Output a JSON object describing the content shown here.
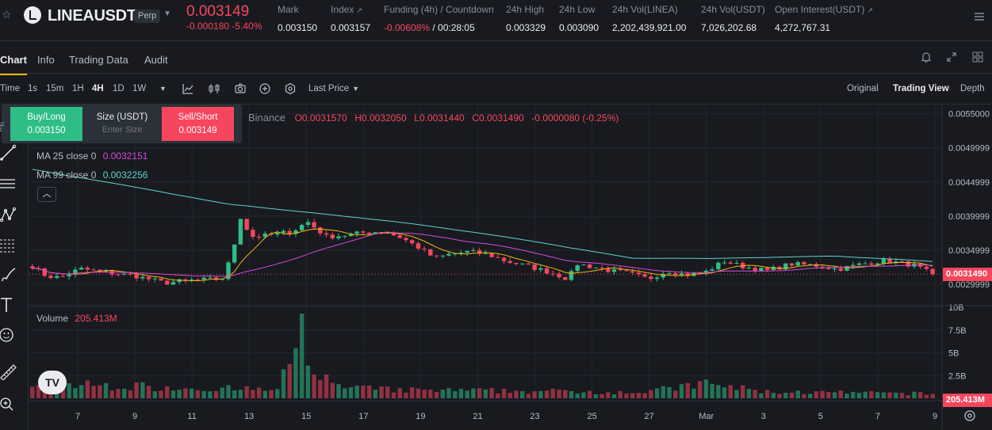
{
  "header": {
    "symbol": "LINEAUSDT",
    "badge": "Perp",
    "last_price": "0.003149",
    "change": "-0.000180 -5.40%",
    "stats": [
      {
        "label": "Mark",
        "value": "0.003150"
      },
      {
        "label": "Index",
        "value": "0.003157"
      },
      {
        "label": "Funding (4h) / Countdown",
        "value_neg": "-0.00608%",
        "value_rest": " / 00:28:05"
      },
      {
        "label": "24h High",
        "value": "0.003329"
      },
      {
        "label": "24h Low",
        "value": "0.003090"
      },
      {
        "label": "24h Vol(LINEA)",
        "value": "2,202,439,921.00"
      },
      {
        "label": "24h Vol(USDT)",
        "value": "7,026,202.68"
      },
      {
        "label": "Open Interest(USDT)",
        "value": "4,272,767.31"
      }
    ]
  },
  "tabs": [
    "Chart",
    "Info",
    "Trading Data",
    "Audit"
  ],
  "chart_toolbar": {
    "intervals": [
      "Time",
      "1s",
      "15m",
      "1H",
      "4H",
      "1D",
      "1W"
    ],
    "active_interval": "4H",
    "price_type": "Last Price",
    "views": [
      "Original",
      "Trading View",
      "Depth"
    ],
    "active_view": "Trading View"
  },
  "order_widget": {
    "buy_label": "Buy/Long",
    "buy_price": "0.003150",
    "size_label": "Size (USDT)",
    "size_placeholder": "Enter Size",
    "sell_label": "Sell/Short",
    "sell_price": "0.003149"
  },
  "legend": {
    "ohlc_source": "Binance",
    "o": "O0.0031570",
    "h": "H0.0032050",
    "l": "L0.0031440",
    "c": "C0.0031490",
    "chg": "-0.0000080 (-0.25%)",
    "ma25_label": "MA 25 close 0",
    "ma25_value": "0.0032151",
    "ma99_label": "MA 99 close 0",
    "ma99_value": "0.0032256",
    "volume_label": "Volume",
    "volume_value": "205.413M",
    "tv_logo": "TV"
  },
  "colors": {
    "up": "#2ebd85",
    "down": "#f6465d",
    "ma7": "#f0b90b",
    "ma25": "#d64bd8",
    "ma99": "#5ed3c7",
    "accent": "#f0b90b"
  },
  "chart_data": {
    "type": "candlestick",
    "interval": "4H",
    "price_axis_ticks": [
      "0.0055000",
      "0.0049999",
      "0.0044999",
      "0.0039999",
      "0.0034999",
      "0.0029999"
    ],
    "price_ylim": [
      0.0027,
      0.0056
    ],
    "volume_axis_ticks": [
      "10B",
      "7.5B",
      "5B",
      "2.5B"
    ],
    "volume_ylim": [
      0,
      10
    ],
    "last_price_tag": "0.0031490",
    "last_price_value": 0.003149,
    "last_volume_tag": "205.413M",
    "x_labels": [
      "7",
      "9",
      "11",
      "13",
      "15",
      "17",
      "19",
      "21",
      "23",
      "25",
      "27",
      "Mar",
      "3",
      "5",
      "7",
      "9"
    ],
    "candle_count": 148,
    "anchors": [
      [
        0,
        0.00327
      ],
      [
        3,
        0.00312
      ],
      [
        6,
        0.0031
      ],
      [
        10,
        0.00323
      ],
      [
        15,
        0.00318
      ],
      [
        22,
        0.00312
      ],
      [
        28,
        0.00302
      ],
      [
        33,
        0.00306
      ],
      [
        40,
        0.00308
      ],
      [
        42,
        0.0034
      ],
      [
        44,
        0.004
      ],
      [
        46,
        0.0037
      ],
      [
        50,
        0.00372
      ],
      [
        55,
        0.00378
      ],
      [
        58,
        0.00392
      ],
      [
        62,
        0.0037
      ],
      [
        66,
        0.00372
      ],
      [
        70,
        0.00376
      ],
      [
        74,
        0.00378
      ],
      [
        78,
        0.00368
      ],
      [
        82,
        0.00352
      ],
      [
        85,
        0.00338
      ],
      [
        88,
        0.00344
      ],
      [
        92,
        0.00348
      ],
      [
        96,
        0.00344
      ],
      [
        100,
        0.00334
      ],
      [
        105,
        0.00326
      ],
      [
        110,
        0.00316
      ],
      [
        113,
        0.00308
      ],
      [
        115,
        0.0033
      ],
      [
        118,
        0.00326
      ],
      [
        122,
        0.0032
      ],
      [
        126,
        0.00316
      ],
      [
        130,
        0.00308
      ],
      [
        134,
        0.0032
      ],
      [
        138,
        0.00314
      ],
      [
        142,
        0.00318
      ],
      [
        146,
        0.00334
      ],
      [
        150,
        0.00326
      ],
      [
        155,
        0.0032
      ],
      [
        160,
        0.0033
      ],
      [
        165,
        0.00328
      ],
      [
        170,
        0.00322
      ],
      [
        175,
        0.0033
      ],
      [
        180,
        0.00335
      ],
      [
        186,
        0.00328
      ],
      [
        190,
        0.00315
      ]
    ],
    "volume_profile": [
      [
        0,
        1.6
      ],
      [
        40,
        0.9
      ],
      [
        43,
        5.5
      ],
      [
        44,
        9.4
      ],
      [
        46,
        3.5
      ],
      [
        50,
        1.2
      ],
      [
        60,
        0.9
      ],
      [
        100,
        0.7
      ],
      [
        110,
        1.6
      ],
      [
        120,
        0.7
      ],
      [
        148,
        0.5
      ]
    ]
  }
}
